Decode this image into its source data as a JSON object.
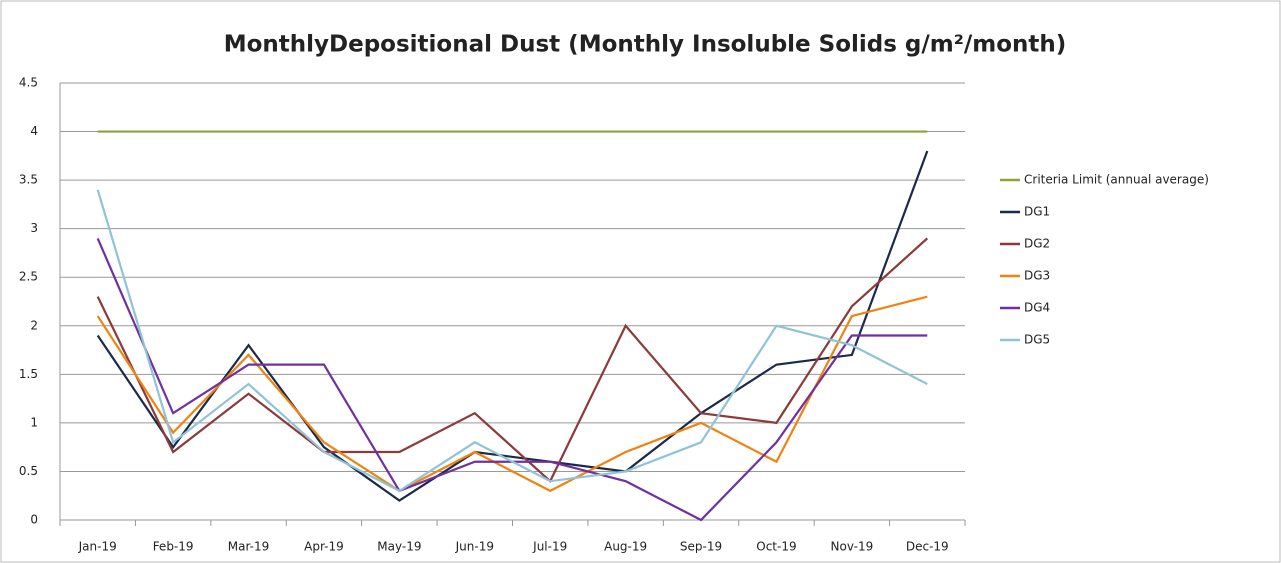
{
  "chart_data": {
    "type": "line",
    "title": "MonthlyDepositional Dust (Monthly Insoluble Solids g/m²/month)",
    "categories": [
      "Jan-19",
      "Feb-19",
      "Mar-19",
      "Apr-19",
      "May-19",
      "Jun-19",
      "Jul-19",
      "Aug-19",
      "Sep-19",
      "Oct-19",
      "Nov-19",
      "Dec-19"
    ],
    "series": [
      {
        "name": "Criteria Limit (annual average)",
        "color": "#8aa33a",
        "values": [
          4,
          4,
          4,
          4,
          4,
          4,
          4,
          4,
          4,
          4,
          4,
          4
        ]
      },
      {
        "name": "DG1",
        "color": "#1c2a4a",
        "values": [
          1.9,
          0.75,
          1.8,
          0.75,
          0.2,
          0.7,
          0.6,
          0.5,
          1.1,
          1.6,
          1.7,
          3.8
        ]
      },
      {
        "name": "DG2",
        "color": "#8c3b3b",
        "values": [
          2.3,
          0.7,
          1.3,
          0.7,
          0.7,
          1.1,
          0.4,
          2.0,
          1.1,
          1.0,
          2.2,
          2.9
        ]
      },
      {
        "name": "DG3",
        "color": "#f0820f",
        "values": [
          2.1,
          0.9,
          1.7,
          0.8,
          0.3,
          0.7,
          0.3,
          0.7,
          1.0,
          0.6,
          2.1,
          2.3
        ]
      },
      {
        "name": "DG4",
        "color": "#7030a0",
        "values": [
          2.9,
          1.1,
          1.6,
          1.6,
          0.3,
          0.6,
          0.6,
          0.4,
          0.0,
          0.8,
          1.9,
          1.9
        ]
      },
      {
        "name": "DG5",
        "color": "#8fc3d6",
        "values": [
          3.4,
          0.8,
          1.4,
          0.7,
          0.3,
          0.8,
          0.4,
          0.5,
          0.8,
          2.0,
          1.8,
          1.4
        ]
      }
    ],
    "ylim": [
      0,
      4.5
    ],
    "yticks": [
      0,
      0.5,
      1,
      1.5,
      2,
      2.5,
      3,
      3.5,
      4,
      4.5
    ],
    "grid": true,
    "legend": "right"
  }
}
